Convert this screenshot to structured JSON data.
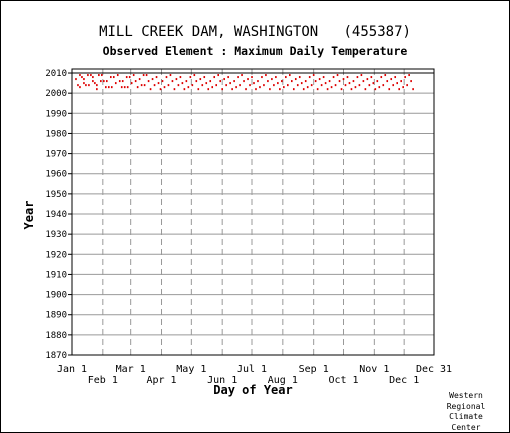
{
  "header": {
    "title": "MILL CREEK DAM, WASHINGTON   (455387)",
    "subtitle": "Observed Element : Maximum Daily Temperature"
  },
  "credit": [
    "Western",
    "Regional",
    "Climate",
    "Center"
  ],
  "colors": {
    "data": "#dd0000",
    "grid": "#999999",
    "axis": "#000000"
  },
  "chart_data": {
    "type": "scatter",
    "title": "MILL CREEK DAM, WASHINGTON   (455387)",
    "subtitle": "Observed Element : Maximum Daily Temperature",
    "xlabel": "Day of Year",
    "ylabel": "Year",
    "xlim": [
      1,
      365
    ],
    "ylim": [
      1870,
      2012
    ],
    "x_ticks_top": [
      "Jan 1",
      "Mar 1",
      "May 1",
      "Jul 1",
      "Sep 1",
      "Nov 1",
      "Dec 31"
    ],
    "x_ticks_top_days": [
      1,
      60,
      121,
      182,
      244,
      305,
      365
    ],
    "x_ticks_bottom": [
      "Feb 1",
      "Apr 1",
      "Jun 1",
      "Aug 1",
      "Oct 1",
      "Dec 1"
    ],
    "x_ticks_bottom_days": [
      32,
      91,
      152,
      213,
      274,
      335
    ],
    "y_ticks": [
      2010,
      2000,
      1990,
      1980,
      1970,
      1960,
      1950,
      1940,
      1930,
      1920,
      1910,
      1900,
      1890,
      1880,
      1870
    ],
    "grid": true,
    "period_of_record": [
      2002,
      2009
    ],
    "observed_day_ranges": [
      [
        4,
        345
      ]
    ],
    "series": [
      {
        "values": [
          {
            "day": 5,
            "year": 2004
          },
          {
            "day": 9,
            "year": 2008
          },
          {
            "day": 13,
            "year": 2005
          },
          {
            "day": 18,
            "year": 2007
          },
          {
            "day": 22,
            "year": 2004
          },
          {
            "day": 26,
            "year": 2009
          },
          {
            "day": 31,
            "year": 2005
          },
          {
            "day": 36,
            "year": 2008
          },
          {
            "day": 41,
            "year": 2004
          },
          {
            "day": 47,
            "year": 2009
          },
          {
            "day": 52,
            "year": 2005
          },
          {
            "day": 57,
            "year": 2008
          },
          {
            "day": 63,
            "year": 2004
          },
          {
            "day": 69,
            "year": 2007
          },
          {
            "day": 74,
            "year": 2005
          },
          {
            "day": 80,
            "year": 2004
          },
          {
            "day": 86,
            "year": 2009
          },
          {
            "day": 92,
            "year": 2006
          },
          {
            "day": 98,
            "year": 2008
          },
          {
            "day": 104,
            "year": 2005
          },
          {
            "day": 110,
            "year": 2004
          },
          {
            "day": 116,
            "year": 2006
          },
          {
            "day": 122,
            "year": 2009
          },
          {
            "day": 128,
            "year": 2005
          },
          {
            "day": 134,
            "year": 2007
          },
          {
            "day": 140,
            "year": 2004
          },
          {
            "day": 146,
            "year": 2008
          },
          {
            "day": 152,
            "year": 2005
          },
          {
            "day": 158,
            "year": 2006
          },
          {
            "day": 164,
            "year": 2004
          },
          {
            "day": 170,
            "year": 2009
          },
          {
            "day": 176,
            "year": 2005
          },
          {
            "day": 182,
            "year": 2007
          },
          {
            "day": 188,
            "year": 2004
          },
          {
            "day": 194,
            "year": 2006
          },
          {
            "day": 200,
            "year": 2008
          },
          {
            "day": 206,
            "year": 2005
          },
          {
            "day": 212,
            "year": 2004
          },
          {
            "day": 218,
            "year": 2009
          },
          {
            "day": 224,
            "year": 2006
          },
          {
            "day": 230,
            "year": 2005
          },
          {
            "day": 236,
            "year": 2008
          },
          {
            "day": 242,
            "year": 2004
          },
          {
            "day": 248,
            "year": 2007
          },
          {
            "day": 254,
            "year": 2005
          },
          {
            "day": 260,
            "year": 2009
          },
          {
            "day": 266,
            "year": 2006
          },
          {
            "day": 272,
            "year": 2004
          },
          {
            "day": 278,
            "year": 2008
          },
          {
            "day": 284,
            "year": 2005
          },
          {
            "day": 290,
            "year": 2007
          },
          {
            "day": 296,
            "year": 2004
          },
          {
            "day": 302,
            "year": 2009
          },
          {
            "day": 308,
            "year": 2006
          },
          {
            "day": 314,
            "year": 2005
          },
          {
            "day": 320,
            "year": 2008
          },
          {
            "day": 326,
            "year": 2004
          },
          {
            "day": 332,
            "year": 2007
          },
          {
            "day": 338,
            "year": 2005
          },
          {
            "day": 344,
            "year": 2003
          }
        ]
      }
    ]
  }
}
